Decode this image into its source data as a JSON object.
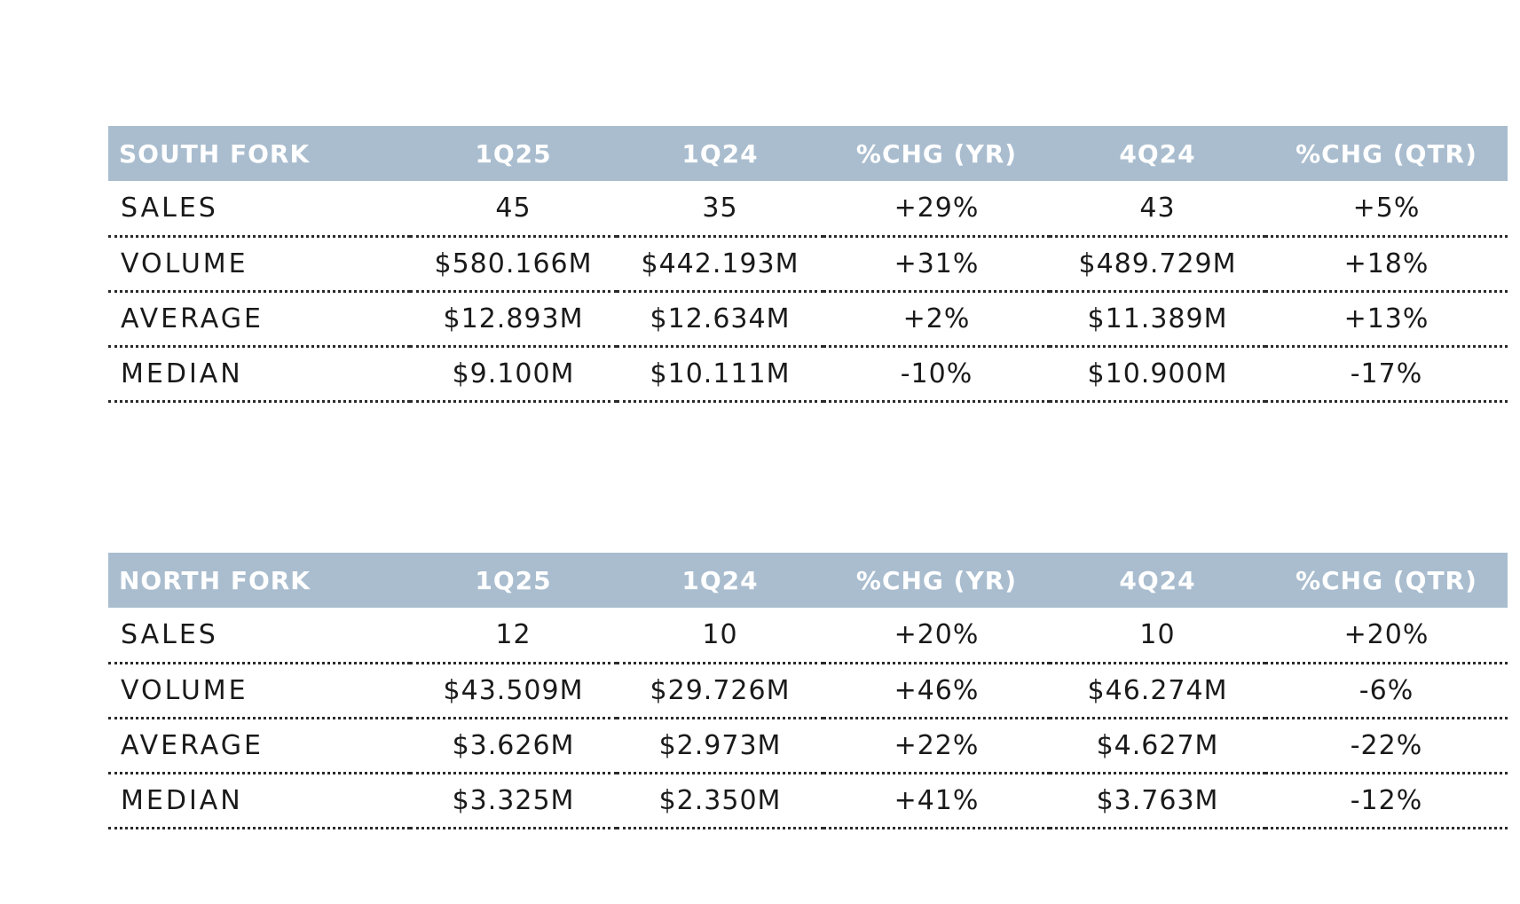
{
  "chart_data": [
    {
      "type": "table",
      "columns": [
        "SOUTH FORK",
        "1Q25",
        "1Q24",
        "%CHG (YR)",
        "4Q24",
        "%CHG (QTR)"
      ],
      "rows": [
        [
          "SALES",
          "45",
          "35",
          "+29%",
          "43",
          "+5%"
        ],
        [
          "VOLUME",
          "$580.166M",
          "$442.193M",
          "+31%",
          "$489.729M",
          "+18%"
        ],
        [
          "AVERAGE",
          "$12.893M",
          "$12.634M",
          "+2%",
          "$11.389M",
          "+13%"
        ],
        [
          "MEDIAN",
          "$9.100M",
          "$10.111M",
          "-10%",
          "$10.900M",
          "-17%"
        ]
      ],
      "header_color": "#a9bdcf"
    },
    {
      "type": "table",
      "columns": [
        "NORTH FORK",
        "1Q25",
        "1Q24",
        "%CHG (YR)",
        "4Q24",
        "%CHG (QTR)"
      ],
      "rows": [
        [
          "SALES",
          "12",
          "10",
          "+20%",
          "10",
          "+20%"
        ],
        [
          "VOLUME",
          "$43.509M",
          "$29.726M",
          "+46%",
          "$46.274M",
          "-6%"
        ],
        [
          "AVERAGE",
          "$3.626M",
          "$2.973M",
          "+22%",
          "$4.627M",
          "-22%"
        ],
        [
          "MEDIAN",
          "$3.325M",
          "$2.350M",
          "+41%",
          "$3.763M",
          "-12%"
        ]
      ],
      "header_color": "#a9bdcf"
    }
  ]
}
